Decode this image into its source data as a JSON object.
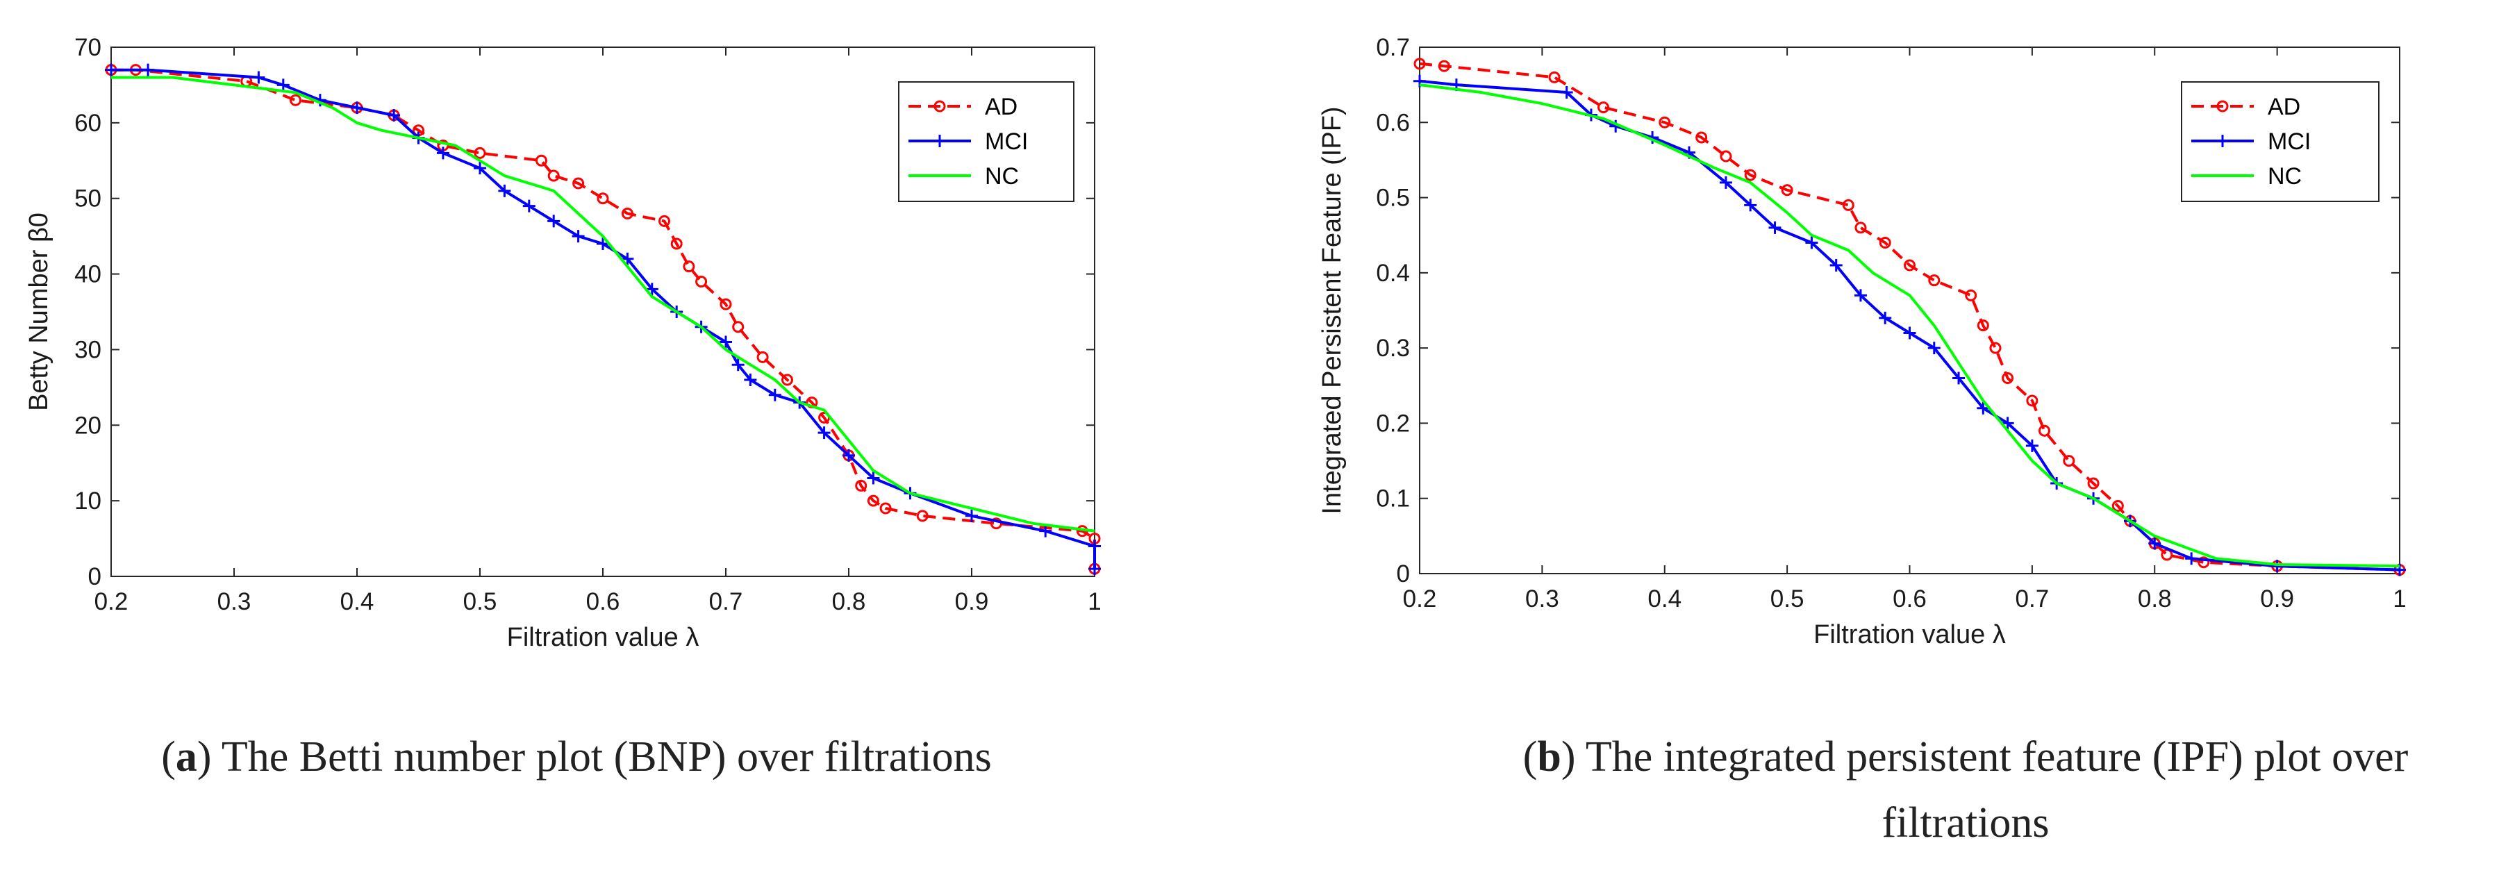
{
  "chart_data": [
    {
      "type": "line",
      "panel_label": "a",
      "caption": "The Betti number plot (BNP) over filtrations",
      "xlabel": "Filtration value λ",
      "ylabel": "Betty Number β0",
      "xlim": [
        0.2,
        1
      ],
      "ylim": [
        0,
        70
      ],
      "xticks": [
        0.2,
        0.3,
        0.4,
        0.5,
        0.6,
        0.7,
        0.8,
        0.9,
        1
      ],
      "xtick_labels": [
        "0.2",
        "0.3",
        "0.4",
        "0.5",
        "0.6",
        "0.7",
        "0.8",
        "0.9",
        "1"
      ],
      "yticks": [
        0,
        10,
        20,
        30,
        40,
        50,
        60,
        70
      ],
      "ytick_labels": [
        "0",
        "10",
        "20",
        "30",
        "40",
        "50",
        "60",
        "70"
      ],
      "legend_position": "top-right",
      "series": [
        {
          "name": "AD",
          "color": "#ff0000",
          "style": "dashed",
          "marker": "circle",
          "x": [
            0.2,
            0.22,
            0.31,
            0.35,
            0.4,
            0.43,
            0.45,
            0.47,
            0.5,
            0.55,
            0.56,
            0.58,
            0.6,
            0.62,
            0.65,
            0.66,
            0.67,
            0.68,
            0.7,
            0.71,
            0.73,
            0.75,
            0.77,
            0.78,
            0.8,
            0.81,
            0.82,
            0.83,
            0.86,
            0.92,
            0.99,
            1.0,
            1.0
          ],
          "y": [
            67,
            67,
            65.5,
            63,
            62,
            61,
            59,
            57,
            56,
            55,
            53,
            52,
            50,
            48,
            47,
            44,
            41,
            39,
            36,
            33,
            29,
            26,
            23,
            21,
            16,
            12,
            10,
            9,
            8,
            7,
            6,
            5,
            1
          ]
        },
        {
          "name": "MCI",
          "color": "#0000ff",
          "style": "solid",
          "marker": "plus",
          "x": [
            0.2,
            0.23,
            0.32,
            0.34,
            0.37,
            0.4,
            0.43,
            0.45,
            0.47,
            0.5,
            0.52,
            0.54,
            0.56,
            0.58,
            0.6,
            0.62,
            0.64,
            0.66,
            0.68,
            0.7,
            0.71,
            0.72,
            0.74,
            0.76,
            0.78,
            0.8,
            0.82,
            0.85,
            0.9,
            0.96,
            1.0,
            1.0
          ],
          "y": [
            67,
            67,
            66,
            65,
            63,
            62,
            61,
            58,
            56,
            54,
            51,
            49,
            47,
            45,
            44,
            42,
            38,
            35,
            33,
            31,
            28,
            26,
            24,
            23,
            19,
            16,
            13,
            11,
            8,
            6,
            4,
            1
          ]
        },
        {
          "name": "NC",
          "color": "#00ff00",
          "style": "solid",
          "marker": "none",
          "x": [
            0.2,
            0.25,
            0.3,
            0.35,
            0.38,
            0.4,
            0.42,
            0.45,
            0.48,
            0.5,
            0.52,
            0.54,
            0.56,
            0.58,
            0.6,
            0.62,
            0.64,
            0.66,
            0.68,
            0.7,
            0.72,
            0.74,
            0.76,
            0.78,
            0.8,
            0.82,
            0.85,
            0.9,
            0.95,
            1.0
          ],
          "y": [
            66,
            66,
            65,
            64,
            62,
            60,
            59,
            58,
            57,
            55,
            53,
            52,
            51,
            48,
            45,
            41,
            37,
            35,
            33,
            30,
            28,
            26,
            23,
            22,
            18,
            14,
            11,
            9,
            7,
            6
          ]
        }
      ]
    },
    {
      "type": "line",
      "panel_label": "b",
      "caption": "The integrated persistent feature (IPF) plot over filtrations",
      "caption_line1": "The integrated persistent feature (IPF) plot over",
      "caption_line2": "filtrations",
      "xlabel": "Filtration value λ",
      "ylabel": "Integrated Persistent Feature (IPF)",
      "xlim": [
        0.2,
        1
      ],
      "ylim": [
        0,
        0.7
      ],
      "xticks": [
        0.2,
        0.3,
        0.4,
        0.5,
        0.6,
        0.7,
        0.8,
        0.9,
        1
      ],
      "xtick_labels": [
        "0.2",
        "0.3",
        "0.4",
        "0.5",
        "0.6",
        "0.7",
        "0.8",
        "0.9",
        "1"
      ],
      "yticks": [
        0,
        0.1,
        0.2,
        0.3,
        0.4,
        0.5,
        0.6,
        0.7
      ],
      "ytick_labels": [
        "0",
        "0.1",
        "0.2",
        "0.3",
        "0.4",
        "0.5",
        "0.6",
        "0.7"
      ],
      "legend_position": "top-right",
      "series": [
        {
          "name": "AD",
          "color": "#ff0000",
          "style": "dashed",
          "marker": "circle",
          "x": [
            0.2,
            0.22,
            0.31,
            0.35,
            0.4,
            0.43,
            0.45,
            0.47,
            0.5,
            0.55,
            0.56,
            0.58,
            0.6,
            0.62,
            0.65,
            0.66,
            0.67,
            0.68,
            0.7,
            0.71,
            0.73,
            0.75,
            0.77,
            0.78,
            0.8,
            0.81,
            0.84,
            0.9,
            1.0
          ],
          "y": [
            0.678,
            0.675,
            0.66,
            0.62,
            0.6,
            0.58,
            0.555,
            0.53,
            0.51,
            0.49,
            0.46,
            0.44,
            0.41,
            0.39,
            0.37,
            0.33,
            0.3,
            0.26,
            0.23,
            0.19,
            0.15,
            0.12,
            0.09,
            0.07,
            0.04,
            0.025,
            0.015,
            0.01,
            0.005
          ]
        },
        {
          "name": "MCI",
          "color": "#0000ff",
          "style": "solid",
          "marker": "plus",
          "x": [
            0.2,
            0.23,
            0.32,
            0.34,
            0.36,
            0.39,
            0.42,
            0.45,
            0.47,
            0.49,
            0.52,
            0.54,
            0.56,
            0.58,
            0.6,
            0.62,
            0.64,
            0.66,
            0.68,
            0.7,
            0.72,
            0.75,
            0.78,
            0.8,
            0.83,
            0.9,
            1.0
          ],
          "y": [
            0.655,
            0.65,
            0.64,
            0.61,
            0.595,
            0.58,
            0.56,
            0.52,
            0.49,
            0.46,
            0.44,
            0.41,
            0.37,
            0.34,
            0.32,
            0.3,
            0.26,
            0.22,
            0.2,
            0.17,
            0.12,
            0.1,
            0.07,
            0.04,
            0.02,
            0.01,
            0.005
          ]
        },
        {
          "name": "NC",
          "color": "#00ff00",
          "style": "solid",
          "marker": "none",
          "x": [
            0.2,
            0.25,
            0.3,
            0.35,
            0.4,
            0.44,
            0.47,
            0.5,
            0.52,
            0.55,
            0.57,
            0.6,
            0.62,
            0.64,
            0.66,
            0.68,
            0.7,
            0.72,
            0.75,
            0.78,
            0.8,
            0.85,
            0.9,
            1.0
          ],
          "y": [
            0.65,
            0.64,
            0.625,
            0.605,
            0.57,
            0.54,
            0.52,
            0.48,
            0.45,
            0.43,
            0.4,
            0.37,
            0.33,
            0.28,
            0.23,
            0.19,
            0.15,
            0.12,
            0.1,
            0.07,
            0.05,
            0.02,
            0.012,
            0.01
          ]
        }
      ]
    }
  ]
}
